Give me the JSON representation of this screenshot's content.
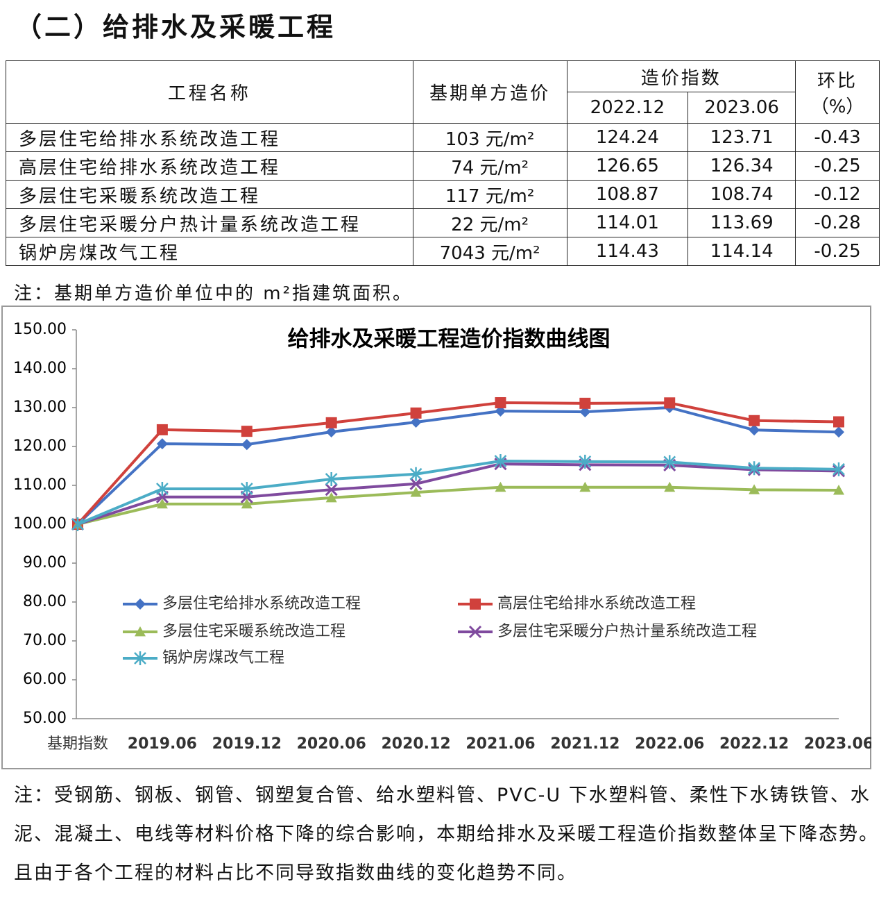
{
  "header": {
    "title": "（二）给排水及采暖工程"
  },
  "table": {
    "header": {
      "name": "工程名称",
      "base_price": "基期单方造价",
      "index": "造价指数",
      "periods": [
        "2022.12",
        "2023.06"
      ],
      "ratio": [
        "环比",
        "（%）"
      ]
    },
    "rows": [
      [
        "多层住宅给排水系统改造工程",
        "103 元/m²",
        "124.24",
        "123.71",
        "-0.43"
      ],
      [
        "高层住宅给排水系统改造工程",
        "74 元/m²",
        "126.65",
        "126.34",
        "-0.25"
      ],
      [
        "多层住宅采暖系统改造工程",
        "117 元/m²",
        "108.87",
        "108.74",
        "-0.12"
      ],
      [
        "多层住宅采暖分户热计量系统改造工程",
        "22 元/m²",
        "114.01",
        "113.69",
        "-0.28"
      ],
      [
        "锅炉房煤改气工程",
        "7043 元/m²",
        "114.43",
        "114.14",
        "-0.25"
      ]
    ]
  },
  "table_note": "注：基期单方造价单位中的 m²指建筑面积。",
  "chart_data": {
    "type": "line",
    "title": "给排水及采暖工程造价指数曲线图",
    "categories": [
      "基期指数",
      "2019.06",
      "2019.12",
      "2020.06",
      "2020.12",
      "2021.06",
      "2021.12",
      "2022.06",
      "2022.12",
      "2023.06"
    ],
    "series": [
      {
        "name": "多层住宅给排水系统改造工程",
        "color": "#4472c4",
        "marker": "diamond",
        "values": [
          100,
          120.7,
          120.5,
          123.75,
          126.25,
          129.1,
          128.9,
          130.0,
          124.24,
          123.71
        ]
      },
      {
        "name": "高层住宅给排水系统改造工程",
        "color": "#d0413c",
        "marker": "square",
        "values": [
          100,
          124.3,
          123.9,
          126.1,
          128.6,
          131.25,
          131.1,
          131.2,
          126.65,
          126.34
        ]
      },
      {
        "name": "多层住宅采暖系统改造工程",
        "color": "#9bbb59",
        "marker": "triangle",
        "values": [
          100,
          105.2,
          105.2,
          106.8,
          108.2,
          109.5,
          109.5,
          109.5,
          108.87,
          108.74
        ]
      },
      {
        "name": "多层住宅采暖分户热计量系统改造工程",
        "color": "#7f4a9e",
        "marker": "x",
        "values": [
          100,
          107.0,
          107.0,
          108.9,
          110.4,
          115.5,
          115.3,
          115.2,
          114.01,
          113.69
        ]
      },
      {
        "name": "锅炉房煤改气工程",
        "color": "#4bacc6",
        "marker": "star",
        "values": [
          100,
          109.1,
          109.1,
          111.6,
          112.9,
          116.25,
          116.1,
          116.0,
          114.43,
          114.14
        ]
      }
    ],
    "ylim": [
      50,
      150
    ],
    "yticks": [
      {
        "value": 50,
        "label": "50.00"
      },
      {
        "value": 60,
        "label": "60.00"
      },
      {
        "value": 70,
        "label": "70.00"
      },
      {
        "value": 80,
        "label": "80.00"
      },
      {
        "value": 90,
        "label": "90.00"
      },
      {
        "value": 100,
        "label": "100.00"
      },
      {
        "value": 110,
        "label": "110.00"
      },
      {
        "value": 120,
        "label": "120.00"
      },
      {
        "value": 130,
        "label": "130.00"
      },
      {
        "value": 140,
        "label": "140.00"
      },
      {
        "value": 150,
        "label": "150.00"
      }
    ],
    "grid": false
  },
  "footer_note": "注：受钢筋、钢板、钢管、钢塑复合管、给水塑料管、PVC-U 下水塑料管、柔性下水铸铁管、水泥、混凝土、电线等材料价格下降的综合影响，本期给排水及采暖工程造价指数整体呈下降态势。且由于各个工程的材料占比不同导致指数曲线的变化趋势不同。"
}
